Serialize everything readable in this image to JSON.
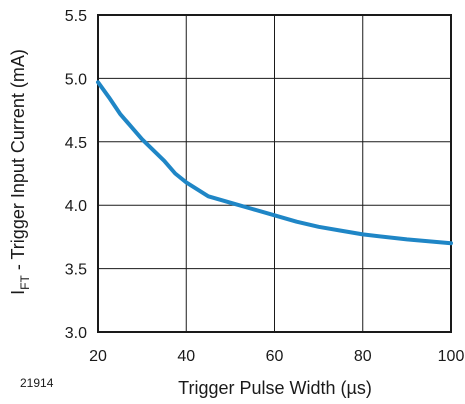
{
  "chart_data": {
    "type": "line",
    "title": "",
    "xlabel": "Trigger Pulse Width (µs)",
    "ylabel_main": "I",
    "ylabel_sub": "FT",
    "ylabel_rest": " - Trigger Input Current (mA)",
    "xlim": [
      20,
      100
    ],
    "ylim": [
      3.0,
      5.5
    ],
    "xticks": [
      "20",
      "40",
      "60",
      "80",
      "100"
    ],
    "yticks": [
      "3.0",
      "3.5",
      "4.0",
      "4.5",
      "5.0",
      "5.5"
    ],
    "grid": true,
    "series": [
      {
        "color": "#1f86c6",
        "x": [
          20,
          22.5,
          25,
          30,
          35,
          37.5,
          40,
          45,
          50,
          55,
          60,
          65,
          70,
          75,
          80,
          90,
          100
        ],
        "y": [
          4.97,
          4.85,
          4.72,
          4.52,
          4.35,
          4.25,
          4.18,
          4.07,
          4.02,
          3.97,
          3.92,
          3.87,
          3.83,
          3.8,
          3.77,
          3.73,
          3.7
        ]
      }
    ]
  },
  "figure_id": "21914"
}
